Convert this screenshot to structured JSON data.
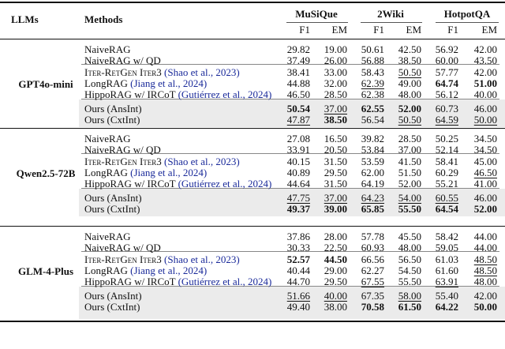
{
  "header": {
    "llms": "LLMs",
    "methods": "Methods",
    "datasets": [
      "MuSiQue",
      "2Wiki",
      "HotpotQA"
    ],
    "metrics": [
      "F1",
      "EM",
      "F1",
      "EM",
      "F1",
      "EM"
    ]
  },
  "groups": [
    {
      "llm": "GPT4o-mini",
      "rows": [
        {
          "method": "NaiveRAG",
          "cite": "",
          "cells": [
            {
              "v": "29.82",
              "s": ""
            },
            {
              "v": "19.00",
              "s": ""
            },
            {
              "v": "50.61",
              "s": ""
            },
            {
              "v": "42.50",
              "s": ""
            },
            {
              "v": "56.92",
              "s": ""
            },
            {
              "v": "42.00",
              "s": ""
            }
          ]
        },
        {
          "method": "NaiveRAG w/ QD",
          "cite": "",
          "cells": [
            {
              "v": "37.49",
              "s": ""
            },
            {
              "v": "26.00",
              "s": ""
            },
            {
              "v": "56.88",
              "s": ""
            },
            {
              "v": "38.50",
              "s": ""
            },
            {
              "v": "60.00",
              "s": ""
            },
            {
              "v": "43.50",
              "s": ""
            }
          ]
        },
        {
          "method": "Iter-RetGen Iter3",
          "cite": "(Shao et al., 2023)",
          "cells": [
            {
              "v": "38.41",
              "s": ""
            },
            {
              "v": "33.00",
              "s": ""
            },
            {
              "v": "58.43",
              "s": ""
            },
            {
              "v": "50.50",
              "s": "u"
            },
            {
              "v": "57.77",
              "s": ""
            },
            {
              "v": "42.00",
              "s": ""
            }
          ]
        },
        {
          "method": "LongRAG",
          "cite": "(Jiang et al., 2024)",
          "cells": [
            {
              "v": "44.88",
              "s": ""
            },
            {
              "v": "32.00",
              "s": ""
            },
            {
              "v": "62.39",
              "s": "u"
            },
            {
              "v": "49.00",
              "s": ""
            },
            {
              "v": "64.74",
              "s": "b"
            },
            {
              "v": "51.00",
              "s": "b"
            }
          ]
        },
        {
          "method": "HippoRAG w/ IRCoT",
          "cite": "(Gutiérrez et al., 2024)",
          "cells": [
            {
              "v": "46.50",
              "s": ""
            },
            {
              "v": "28.50",
              "s": ""
            },
            {
              "v": "62.38",
              "s": ""
            },
            {
              "v": "48.00",
              "s": ""
            },
            {
              "v": "56.12",
              "s": ""
            },
            {
              "v": "40.00",
              "s": ""
            }
          ]
        },
        {
          "method": "Ours (AnsInt)",
          "cite": "",
          "cells": [
            {
              "v": "50.54",
              "s": "b"
            },
            {
              "v": "37.00",
              "s": "u"
            },
            {
              "v": "62.55",
              "s": "b"
            },
            {
              "v": "52.00",
              "s": "b"
            },
            {
              "v": "60.73",
              "s": ""
            },
            {
              "v": "46.00",
              "s": ""
            }
          ]
        },
        {
          "method": "Ours (CxtInt)",
          "cite": "",
          "cells": [
            {
              "v": "47.87",
              "s": "u"
            },
            {
              "v": "38.50",
              "s": "b"
            },
            {
              "v": "56.54",
              "s": ""
            },
            {
              "v": "50.50",
              "s": "u"
            },
            {
              "v": "64.59",
              "s": "u"
            },
            {
              "v": "50.00",
              "s": "u"
            }
          ]
        }
      ]
    },
    {
      "llm": "Qwen2.5-72B",
      "rows": [
        {
          "method": "NaiveRAG",
          "cite": "",
          "cells": [
            {
              "v": "27.08",
              "s": ""
            },
            {
              "v": "16.50",
              "s": ""
            },
            {
              "v": "39.82",
              "s": ""
            },
            {
              "v": "28.50",
              "s": ""
            },
            {
              "v": "50.25",
              "s": ""
            },
            {
              "v": "34.50",
              "s": ""
            }
          ]
        },
        {
          "method": "NaiveRAG w/ QD",
          "cite": "",
          "cells": [
            {
              "v": "33.91",
              "s": ""
            },
            {
              "v": "20.50",
              "s": ""
            },
            {
              "v": "53.84",
              "s": ""
            },
            {
              "v": "37.00",
              "s": ""
            },
            {
              "v": "52.14",
              "s": ""
            },
            {
              "v": "34.50",
              "s": ""
            }
          ]
        },
        {
          "method": "Iter-RetGen Iter3",
          "cite": "(Shao et al., 2023)",
          "cells": [
            {
              "v": "40.15",
              "s": ""
            },
            {
              "v": "31.50",
              "s": ""
            },
            {
              "v": "53.59",
              "s": ""
            },
            {
              "v": "41.50",
              "s": ""
            },
            {
              "v": "58.41",
              "s": ""
            },
            {
              "v": "45.00",
              "s": ""
            }
          ]
        },
        {
          "method": "LongRAG",
          "cite": "(Jiang et al., 2024)",
          "cells": [
            {
              "v": "40.89",
              "s": ""
            },
            {
              "v": "29.50",
              "s": ""
            },
            {
              "v": "62.00",
              "s": ""
            },
            {
              "v": "51.50",
              "s": ""
            },
            {
              "v": "60.29",
              "s": ""
            },
            {
              "v": "46.50",
              "s": "u"
            }
          ]
        },
        {
          "method": "HippoRAG w/ IRCoT",
          "cite": "(Gutiérrez et al., 2024)",
          "cells": [
            {
              "v": "44.64",
              "s": ""
            },
            {
              "v": "31.50",
              "s": ""
            },
            {
              "v": "64.19",
              "s": ""
            },
            {
              "v": "52.00",
              "s": ""
            },
            {
              "v": "55.21",
              "s": ""
            },
            {
              "v": "41.00",
              "s": ""
            }
          ]
        },
        {
          "method": "Ours (AnsInt)",
          "cite": "",
          "cells": [
            {
              "v": "47.75",
              "s": "u"
            },
            {
              "v": "37.00",
              "s": "u"
            },
            {
              "v": "64.23",
              "s": "u"
            },
            {
              "v": "54.00",
              "s": "u"
            },
            {
              "v": "60.55",
              "s": "u"
            },
            {
              "v": "46.00",
              "s": ""
            }
          ]
        },
        {
          "method": "Ours (CxtInt)",
          "cite": "",
          "cells": [
            {
              "v": "49.37",
              "s": "b"
            },
            {
              "v": "39.00",
              "s": "b"
            },
            {
              "v": "65.85",
              "s": "b"
            },
            {
              "v": "55.50",
              "s": "b"
            },
            {
              "v": "64.54",
              "s": "b"
            },
            {
              "v": "52.00",
              "s": "b"
            }
          ]
        }
      ]
    },
    {
      "llm": "GLM-4-Plus",
      "rows": [
        {
          "method": "NaiveRAG",
          "cite": "",
          "cells": [
            {
              "v": "37.86",
              "s": ""
            },
            {
              "v": "28.00",
              "s": ""
            },
            {
              "v": "57.78",
              "s": ""
            },
            {
              "v": "45.50",
              "s": ""
            },
            {
              "v": "58.42",
              "s": ""
            },
            {
              "v": "44.00",
              "s": ""
            }
          ]
        },
        {
          "method": "NaiveRAG w/ QD",
          "cite": "",
          "cells": [
            {
              "v": "30.33",
              "s": ""
            },
            {
              "v": "22.50",
              "s": ""
            },
            {
              "v": "60.93",
              "s": ""
            },
            {
              "v": "48.00",
              "s": ""
            },
            {
              "v": "59.05",
              "s": ""
            },
            {
              "v": "44.00",
              "s": ""
            }
          ]
        },
        {
          "method": "Iter-RetGen Iter3",
          "cite": "(Shao et al., 2023)",
          "cells": [
            {
              "v": "52.57",
              "s": "b"
            },
            {
              "v": "44.50",
              "s": "b"
            },
            {
              "v": "66.56",
              "s": ""
            },
            {
              "v": "56.50",
              "s": ""
            },
            {
              "v": "61.03",
              "s": ""
            },
            {
              "v": "48.50",
              "s": "u"
            }
          ]
        },
        {
          "method": "LongRAG",
          "cite": "(Jiang et al., 2024)",
          "cells": [
            {
              "v": "40.44",
              "s": ""
            },
            {
              "v": "29.00",
              "s": ""
            },
            {
              "v": "62.27",
              "s": ""
            },
            {
              "v": "54.50",
              "s": ""
            },
            {
              "v": "61.60",
              "s": ""
            },
            {
              "v": "48.50",
              "s": "u"
            }
          ]
        },
        {
          "method": "HippoRAG w/ IRCoT",
          "cite": "(Gutiérrez et al., 2024)",
          "cells": [
            {
              "v": "44.70",
              "s": ""
            },
            {
              "v": "29.50",
              "s": ""
            },
            {
              "v": "67.55",
              "s": "u"
            },
            {
              "v": "55.50",
              "s": ""
            },
            {
              "v": "63.91",
              "s": "u"
            },
            {
              "v": "48.00",
              "s": ""
            }
          ]
        },
        {
          "method": "Ours (AnsInt)",
          "cite": "",
          "cells": [
            {
              "v": "51.66",
              "s": "u"
            },
            {
              "v": "40.00",
              "s": "u"
            },
            {
              "v": "67.35",
              "s": ""
            },
            {
              "v": "58.00",
              "s": "u"
            },
            {
              "v": "55.40",
              "s": ""
            },
            {
              "v": "42.00",
              "s": ""
            }
          ]
        },
        {
          "method": "Ours (CxtInt)",
          "cite": "",
          "cells": [
            {
              "v": "49.40",
              "s": ""
            },
            {
              "v": "38.00",
              "s": ""
            },
            {
              "v": "70.58",
              "s": "b"
            },
            {
              "v": "61.50",
              "s": "b"
            },
            {
              "v": "64.22",
              "s": "b"
            },
            {
              "v": "50.00",
              "s": "b"
            }
          ]
        }
      ]
    }
  ]
}
